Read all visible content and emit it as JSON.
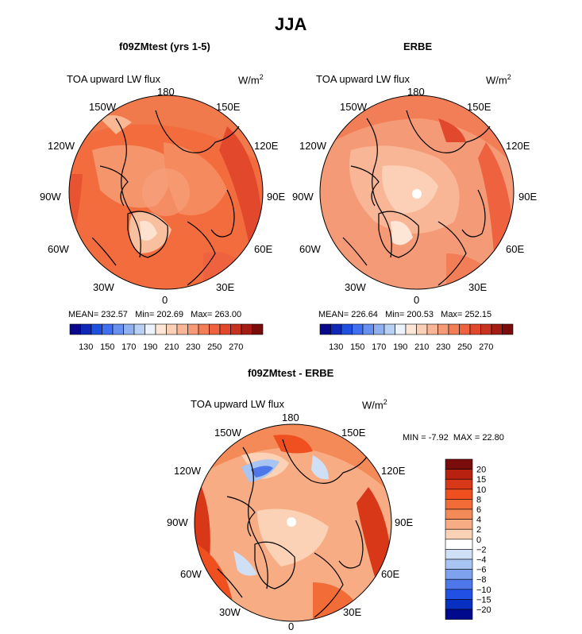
{
  "figure": {
    "title": "JJA",
    "panels": [
      {
        "id": "model",
        "subtitle": "f09ZMtest (yrs 1-5)",
        "left_label": "TOA upward LW flux",
        "units_base": "W/m",
        "units_exp": "2",
        "stats": {
          "mean_label": "MEAN=",
          "mean": "232.57",
          "min_label": "Min=",
          "min": "202.69",
          "max_label": "Max=",
          "max": "263.00"
        },
        "lon_labels": {
          "top": "180",
          "bottom": "0",
          "left": "90W",
          "right": "90E",
          "ul1": "150W",
          "ul2": "120W",
          "ur1": "150E",
          "ur2": "120E",
          "ll1": "60W",
          "ll2": "30W",
          "lr1": "60E",
          "lr2": "30E"
        }
      },
      {
        "id": "obs",
        "subtitle": "ERBE",
        "left_label": "TOA upward LW flux",
        "units_base": "W/m",
        "units_exp": "2",
        "stats": {
          "mean_label": "MEAN=",
          "mean": "226.64",
          "min_label": "Min=",
          "min": "200.53",
          "max_label": "Max=",
          "max": "252.15"
        },
        "lon_labels": {
          "top": "180",
          "bottom": "0",
          "left": "90W",
          "right": "90E",
          "ul1": "150W",
          "ul2": "120W",
          "ur1": "150E",
          "ur2": "120E",
          "ll1": "60W",
          "ll2": "30W",
          "lr1": "60E",
          "lr2": "30E"
        }
      },
      {
        "id": "diff",
        "subtitle": "f09ZMtest - ERBE",
        "left_label": "TOA upward LW flux",
        "units_base": "W/m",
        "units_exp": "2",
        "stats": {
          "min_label": "MIN =",
          "min": "-7.92",
          "max_label": "MAX =",
          "max": "22.80"
        },
        "lon_labels": {
          "top": "180",
          "bottom": "0",
          "left": "90W",
          "right": "90E",
          "ul1": "150W",
          "ul2": "120W",
          "ur1": "150E",
          "ur2": "120E",
          "ll1": "60W",
          "ll2": "30W",
          "lr1": "60E",
          "lr2": "30E"
        }
      }
    ],
    "abs_colorbar": {
      "labels": [
        "130",
        "150",
        "170",
        "190",
        "210",
        "230",
        "250",
        "270"
      ],
      "colors": [
        "#08088c",
        "#1028b8",
        "#2050e0",
        "#4070f0",
        "#6890f0",
        "#90b0f0",
        "#b8d0f4",
        "#ecf3fc",
        "#fde6d6",
        "#fbd0b6",
        "#f8b696",
        "#f59a76",
        "#f27e58",
        "#ee6240",
        "#e2482c",
        "#c83220",
        "#a41c14",
        "#7a0c0c"
      ]
    },
    "diff_colorbar": {
      "labels": [
        "20",
        "15",
        "10",
        "8",
        "6",
        "4",
        "2",
        "0",
        "−2",
        "−4",
        "−6",
        "−8",
        "−10",
        "−15",
        "−20"
      ],
      "colors": [
        "#7a0c0c",
        "#b82010",
        "#d83818",
        "#f05020",
        "#f26c38",
        "#f48a58",
        "#f7ac84",
        "#fbd2b6",
        "#ffffff",
        "#cfe0f6",
        "#a8c4f2",
        "#7ea2ee",
        "#4e78ea",
        "#2050e4",
        "#0830c0",
        "#000a8c"
      ]
    }
  }
}
